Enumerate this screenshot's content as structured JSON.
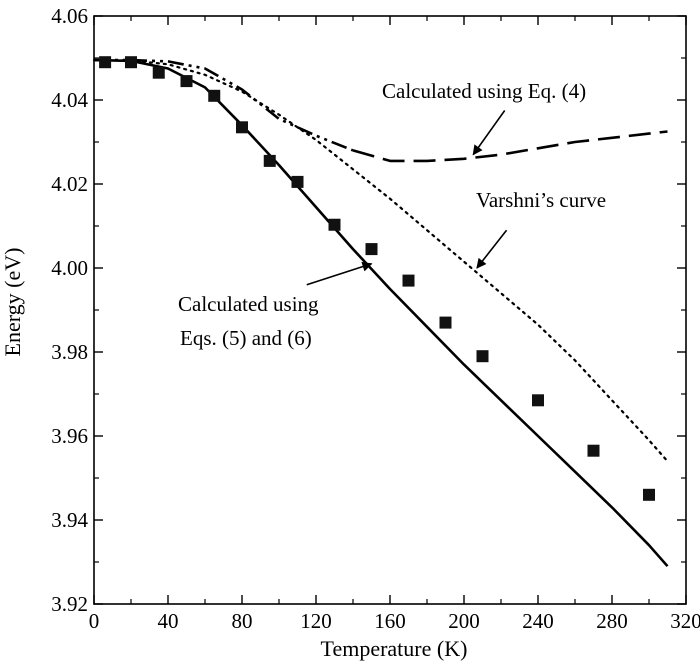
{
  "chart_data": {
    "type": "line",
    "xlabel": "Temperature (K)",
    "ylabel": "Energy (eV)",
    "xlim": [
      0,
      320
    ],
    "ylim": [
      3.92,
      4.06
    ],
    "x_ticks": [
      "0",
      "40",
      "80",
      "120",
      "160",
      "200",
      "240",
      "280",
      "320"
    ],
    "y_ticks": [
      "3.92",
      "3.94",
      "3.96",
      "3.98",
      "4.00",
      "4.02",
      "4.04",
      "4.06"
    ],
    "grid": false,
    "series": [
      {
        "style": "markers",
        "marker": "square",
        "x": [
          6,
          20,
          35,
          50,
          65,
          80,
          95,
          110,
          130,
          150,
          170,
          190,
          210,
          240,
          270,
          300
        ],
        "y": [
          4.049,
          4.049,
          4.0465,
          4.0445,
          4.041,
          4.0335,
          4.0255,
          4.0205,
          4.0103,
          4.0045,
          3.997,
          3.987,
          3.979,
          3.9685,
          3.9565,
          3.946
        ]
      },
      {
        "style": "solid",
        "x": [
          0,
          20,
          40,
          60,
          80,
          100,
          120,
          140,
          160,
          180,
          200,
          220,
          240,
          260,
          280,
          300,
          310
        ],
        "y": [
          4.0495,
          4.0493,
          4.0475,
          4.043,
          4.034,
          4.0245,
          4.0145,
          4.0045,
          3.995,
          3.986,
          3.977,
          3.9685,
          3.96,
          3.9515,
          3.943,
          3.934,
          3.929
        ]
      },
      {
        "style": "dotted",
        "x": [
          0,
          20,
          40,
          60,
          80,
          100,
          120,
          140,
          160,
          180,
          200,
          220,
          240,
          260,
          280,
          300,
          310
        ],
        "y": [
          4.0495,
          4.0494,
          4.0485,
          4.046,
          4.042,
          4.0365,
          4.0305,
          4.0235,
          4.0165,
          4.009,
          4.0015,
          3.994,
          3.9865,
          3.978,
          3.9685,
          3.959,
          3.954
        ]
      },
      {
        "style": "dash-dot-dot",
        "x": [
          0,
          20,
          40,
          60,
          80,
          100,
          120,
          140
        ],
        "y": [
          4.0495,
          4.0495,
          4.0492,
          4.0475,
          4.0425,
          4.0355,
          4.0315,
          4.028
        ]
      },
      {
        "style": "dashed",
        "x": [
          140,
          160,
          180,
          200,
          220,
          240,
          260,
          280,
          300,
          310
        ],
        "y": [
          4.028,
          4.0255,
          4.0255,
          4.026,
          4.027,
          4.0285,
          4.03,
          4.031,
          4.032,
          4.0325
        ]
      }
    ],
    "annotations": [
      {
        "text": "Calculated using Eq. (4)",
        "arrow_from": [
          222,
          4.0375
        ],
        "arrow_to": [
          205,
          4.027
        ]
      },
      {
        "text": "Varshni’s curve",
        "arrow_from": [
          223,
          4.009
        ],
        "arrow_to": [
          207,
          4.0
        ]
      },
      {
        "lines": [
          "Calculated using",
          "Eqs. (5) and (6)"
        ],
        "arrow_from": [
          115,
          3.996
        ],
        "arrow_to": [
          150,
          4.001
        ]
      }
    ]
  }
}
